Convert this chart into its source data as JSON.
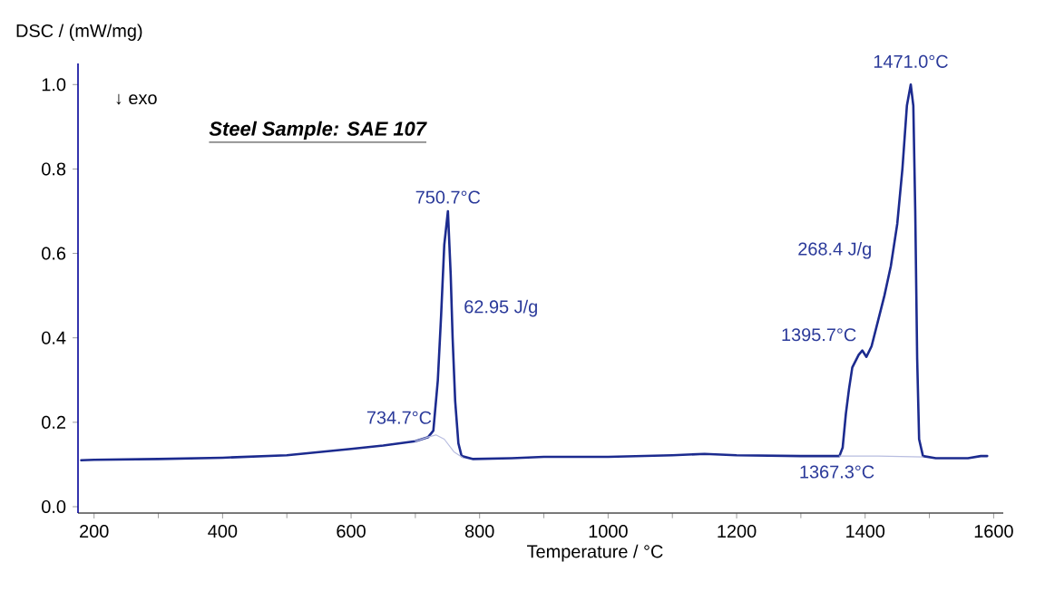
{
  "chart_data": {
    "type": "line",
    "title": "Steel Sample: SAE 107",
    "xlabel": "Temperature / °C",
    "ylabel": "DSC / (mW/mg)",
    "xlim": [
      175,
      1615
    ],
    "ylim": [
      -0.015,
      1.05
    ],
    "xticks": [
      200,
      400,
      600,
      800,
      1000,
      1200,
      1400,
      1600
    ],
    "yticks": [
      {
        "value": 0,
        "label": "0.0"
      },
      0.2,
      0.4,
      0.6,
      0.8,
      {
        "value": 1,
        "label": "1.0"
      }
    ],
    "grid": false,
    "marker": "none",
    "line_style": "solid",
    "series": [
      {
        "color": "#1c2b8f",
        "x": [
          180,
          200,
          300,
          400,
          500,
          600,
          650,
          700,
          720,
          728,
          735,
          740,
          745,
          750.7,
          755,
          758,
          762,
          767,
          772,
          790,
          850,
          900,
          1000,
          1100,
          1150,
          1200,
          1300,
          1360,
          1365,
          1370,
          1375,
          1380,
          1390,
          1395.7,
          1402,
          1410,
          1420,
          1430,
          1440,
          1450,
          1458,
          1465,
          1471,
          1475,
          1478,
          1481,
          1484,
          1490,
          1510,
          1560,
          1580,
          1590
        ],
        "values": [
          0.11,
          0.111,
          0.113,
          0.116,
          0.122,
          0.137,
          0.145,
          0.155,
          0.165,
          0.18,
          0.3,
          0.45,
          0.62,
          0.7,
          0.55,
          0.4,
          0.25,
          0.15,
          0.12,
          0.113,
          0.115,
          0.118,
          0.118,
          0.122,
          0.125,
          0.122,
          0.12,
          0.12,
          0.14,
          0.22,
          0.28,
          0.33,
          0.36,
          0.37,
          0.355,
          0.38,
          0.44,
          0.5,
          0.57,
          0.67,
          0.8,
          0.95,
          1.0,
          0.95,
          0.7,
          0.35,
          0.16,
          0.12,
          0.115,
          0.115,
          0.12,
          0.12
        ]
      },
      {
        "color": "#b8bde0",
        "x": [
          700,
          720,
          732,
          745,
          760,
          775,
          1000,
          1360,
          1420,
          1490
        ],
        "values": [
          0.155,
          0.165,
          0.17,
          0.16,
          0.13,
          0.115,
          null,
          0.12,
          0.12,
          0.118
        ]
      }
    ],
    "annotations": [
      "↓ exo",
      {
        "text": "750.7°C",
        "x": 750.7,
        "y": 0.7
      },
      "62.95 J/g",
      {
        "text": "734.7°C",
        "x": 734.7,
        "y": 0.165
      },
      {
        "text": "1471.0°C",
        "x": 1471.0,
        "y": 1.0
      },
      "268.4 J/g",
      {
        "text": "1395.7°C",
        "x": 1395.7,
        "y": 0.37
      },
      {
        "text": "1367.3°C",
        "x": 1367.3,
        "y": 0.12
      }
    ]
  }
}
